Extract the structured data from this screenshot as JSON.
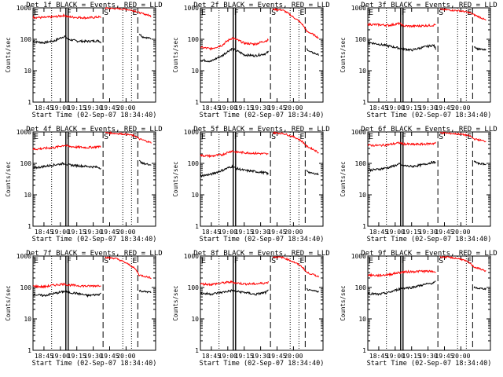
{
  "figure": {
    "colors": {
      "events": "#000000",
      "lld": "#ff0000",
      "background": "#ffffff"
    },
    "time_ticks": [
      "18:45",
      "19:00",
      "19:15",
      "19:30",
      "19:45",
      "20:00"
    ],
    "y_ticks": [
      "1",
      "10",
      "100",
      "1000"
    ]
  },
  "chart_data": [
    {
      "type": "line",
      "title": "Det 1f BLACK = Events, RED = LLD",
      "xlabel": "Start Time (02-Sep-07 18:34:40)",
      "ylabel": "Counts/sec",
      "y_scale": "log",
      "ylim": [
        1,
        1000
      ],
      "x_ticks": [
        "18:45",
        "19:00",
        "19:15",
        "19:30",
        "19:45",
        "20:00"
      ],
      "markers": [
        "E",
        "F",
        "S",
        "E"
      ],
      "marker_minutes": [
        0,
        30,
        64,
        90
      ],
      "data_gaps_minutes": [
        [
          30,
          32
        ],
        [
          62,
          64
        ],
        [
          93,
          97
        ]
      ],
      "series": [
        {
          "name": "Events",
          "color": "#000000",
          "x_minutes": [
            0,
            10,
            20,
            29,
            32,
            40,
            50,
            60,
            62
          ],
          "values": [
            85,
            78,
            90,
            125,
            100,
            88,
            86,
            90,
            80
          ],
          "after_gap": {
            "x_minutes": [
              97,
              100,
              108
            ],
            "values": [
              150,
              120,
              105
            ]
          }
        },
        {
          "name": "LLD",
          "color": "#ff0000",
          "x_minutes": [
            0,
            10,
            20,
            29,
            32,
            40,
            50,
            60,
            62
          ],
          "values": [
            500,
            490,
            520,
            580,
            520,
            500,
            480,
            510,
            500
          ],
          "after_gap": {
            "x_minutes": [
              66,
              75,
              85,
              93,
              97,
              108
            ],
            "values": [
              980,
              950,
              900,
              800,
              700,
              550
            ]
          }
        }
      ]
    },
    {
      "type": "line",
      "title": "Det 2f BLACK = Events, RED = LLD",
      "xlabel": "Start Time (02-Sep-07 18:34:40)",
      "ylabel": "Counts/sec",
      "y_scale": "log",
      "ylim": [
        1,
        1000
      ],
      "x_ticks": [
        "18:45",
        "19:00",
        "19:15",
        "19:30",
        "19:45",
        "20:00"
      ],
      "markers": [
        "E",
        "F",
        "S",
        "E"
      ],
      "marker_minutes": [
        0,
        30,
        64,
        90
      ],
      "data_gaps_minutes": [
        [
          30,
          32
        ],
        [
          62,
          64
        ],
        [
          93,
          97
        ]
      ],
      "series": [
        {
          "name": "Events",
          "color": "#000000",
          "x_minutes": [
            0,
            10,
            20,
            29,
            32,
            40,
            50,
            60,
            62
          ],
          "values": [
            22,
            20,
            30,
            50,
            45,
            32,
            30,
            35,
            40
          ],
          "after_gap": {
            "x_minutes": [
              97,
              100,
              108
            ],
            "values": [
              50,
              40,
              32
            ]
          }
        },
        {
          "name": "LLD",
          "color": "#ff0000",
          "x_minutes": [
            0,
            10,
            20,
            29,
            32,
            40,
            50,
            60,
            62
          ],
          "values": [
            55,
            50,
            65,
            110,
            100,
            75,
            70,
            90,
            95
          ],
          "after_gap": {
            "x_minutes": [
              66,
              75,
              85,
              93,
              97,
              108
            ],
            "values": [
              900,
              850,
              500,
              300,
              180,
              110
            ]
          }
        }
      ]
    },
    {
      "type": "line",
      "title": "Det 3f BLACK = Events, RED = LLD",
      "xlabel": "Start Time (02-Sep-07 18:34:40)",
      "ylabel": "Counts/sec",
      "y_scale": "log",
      "ylim": [
        1,
        1000
      ],
      "x_ticks": [
        "18:45",
        "19:00",
        "19:15",
        "19:30",
        "19:45",
        "20:00"
      ],
      "markers": [
        "E",
        "F",
        "S",
        "E"
      ],
      "marker_minutes": [
        0,
        30,
        64,
        90
      ],
      "data_gaps_minutes": [
        [
          30,
          32
        ],
        [
          62,
          64
        ],
        [
          93,
          97
        ]
      ],
      "series": [
        {
          "name": "Events",
          "color": "#000000",
          "x_minutes": [
            0,
            10,
            20,
            29,
            32,
            40,
            50,
            60,
            62
          ],
          "values": [
            80,
            70,
            60,
            52,
            50,
            45,
            55,
            65,
            50
          ],
          "after_gap": {
            "x_minutes": [
              97,
              100,
              108
            ],
            "values": [
              60,
              50,
              45
            ]
          }
        },
        {
          "name": "LLD",
          "color": "#ff0000",
          "x_minutes": [
            0,
            10,
            20,
            29,
            32,
            40,
            50,
            60,
            62
          ],
          "values": [
            300,
            290,
            280,
            320,
            270,
            260,
            270,
            280,
            300
          ],
          "after_gap": {
            "x_minutes": [
              66,
              75,
              85,
              93,
              97,
              108
            ],
            "values": [
              900,
              850,
              800,
              700,
              600,
              400
            ]
          }
        }
      ]
    },
    {
      "type": "line",
      "title": "Det 4f BLACK = Events, RED = LLD",
      "xlabel": "Start Time (02-Sep-07 18:34:40)",
      "ylabel": "Counts/sec",
      "y_scale": "log",
      "ylim": [
        1,
        1000
      ],
      "x_ticks": [
        "18:45",
        "19:00",
        "19:15",
        "19:30",
        "19:45",
        "20:00"
      ],
      "markers": [
        "E",
        "F",
        "S",
        "E"
      ],
      "marker_minutes": [
        0,
        30,
        64,
        90
      ],
      "data_gaps_minutes": [
        [
          30,
          32
        ],
        [
          62,
          64
        ],
        [
          93,
          97
        ]
      ],
      "series": [
        {
          "name": "Events",
          "color": "#000000",
          "x_minutes": [
            0,
            10,
            20,
            29,
            32,
            40,
            50,
            60,
            62
          ],
          "values": [
            70,
            80,
            90,
            100,
            90,
            85,
            80,
            75,
            70
          ],
          "after_gap": {
            "x_minutes": [
              97,
              100,
              108
            ],
            "values": [
              120,
              100,
              90
            ]
          }
        },
        {
          "name": "LLD",
          "color": "#ff0000",
          "x_minutes": [
            0,
            10,
            20,
            29,
            32,
            40,
            50,
            60,
            62
          ],
          "values": [
            280,
            300,
            320,
            380,
            350,
            330,
            320,
            340,
            360
          ],
          "after_gap": {
            "x_minutes": [
              66,
              75,
              85,
              93,
              97,
              108
            ],
            "values": [
              950,
              900,
              850,
              750,
              600,
              450
            ]
          }
        }
      ]
    },
    {
      "type": "line",
      "title": "Det 5f BLACK = Events, RED = LLD",
      "xlabel": "Start Time (02-Sep-07 18:34:40)",
      "ylabel": "Counts/sec",
      "y_scale": "log",
      "ylim": [
        1,
        1000
      ],
      "x_ticks": [
        "18:45",
        "19:00",
        "19:15",
        "19:30",
        "19:45",
        "20:00"
      ],
      "markers": [
        "E",
        "F",
        "S",
        "E"
      ],
      "marker_minutes": [
        0,
        30,
        64,
        90
      ],
      "data_gaps_minutes": [
        [
          30,
          32
        ],
        [
          62,
          64
        ],
        [
          93,
          97
        ]
      ],
      "series": [
        {
          "name": "Events",
          "color": "#000000",
          "x_minutes": [
            0,
            10,
            20,
            29,
            32,
            40,
            50,
            60,
            62
          ],
          "values": [
            40,
            45,
            60,
            80,
            70,
            60,
            55,
            50,
            45
          ],
          "after_gap": {
            "x_minutes": [
              97,
              100,
              108
            ],
            "values": [
              60,
              50,
              45
            ]
          }
        },
        {
          "name": "LLD",
          "color": "#ff0000",
          "x_minutes": [
            0,
            10,
            20,
            29,
            32,
            40,
            50,
            60,
            62
          ],
          "values": [
            180,
            170,
            190,
            250,
            230,
            220,
            210,
            200,
            190
          ],
          "after_gap": {
            "x_minutes": [
              66,
              75,
              85,
              93,
              97,
              108
            ],
            "values": [
              950,
              900,
              700,
              500,
              350,
              220
            ]
          }
        }
      ]
    },
    {
      "type": "line",
      "title": "Det 6f BLACK = Events, RED = LLD",
      "xlabel": "Start Time (02-Sep-07 18:34:40)",
      "ylabel": "Counts/sec",
      "y_scale": "log",
      "ylim": [
        1,
        1000
      ],
      "x_ticks": [
        "18:45",
        "19:00",
        "19:15",
        "19:30",
        "19:45",
        "20:00"
      ],
      "markers": [
        "E",
        "F",
        "S",
        "E"
      ],
      "marker_minutes": [
        0,
        30,
        64,
        90
      ],
      "data_gaps_minutes": [
        [
          30,
          32
        ],
        [
          62,
          64
        ],
        [
          93,
          97
        ]
      ],
      "series": [
        {
          "name": "Events",
          "color": "#000000",
          "x_minutes": [
            0,
            10,
            20,
            29,
            32,
            40,
            50,
            60,
            62
          ],
          "values": [
            60,
            65,
            75,
            95,
            85,
            80,
            90,
            110,
            100
          ],
          "after_gap": {
            "x_minutes": [
              97,
              100,
              108
            ],
            "values": [
              120,
              100,
              95
            ]
          }
        },
        {
          "name": "LLD",
          "color": "#ff0000",
          "x_minutes": [
            0,
            10,
            20,
            29,
            32,
            40,
            50,
            60,
            62
          ],
          "values": [
            380,
            370,
            400,
            450,
            420,
            400,
            410,
            430,
            450
          ],
          "after_gap": {
            "x_minutes": [
              66,
              75,
              85,
              93,
              97,
              108
            ],
            "values": [
              950,
              900,
              850,
              750,
              600,
              500
            ]
          }
        }
      ]
    },
    {
      "type": "line",
      "title": "Det 7f BLACK = Events, RED = LLD",
      "xlabel": "Start Time (02-Sep-07 18:34:40)",
      "ylabel": "Counts/sec",
      "y_scale": "log",
      "ylim": [
        1,
        1000
      ],
      "x_ticks": [
        "18:45",
        "19:00",
        "19:15",
        "19:30",
        "19:45",
        "20:00"
      ],
      "markers": [
        "E",
        "F",
        "S",
        "E"
      ],
      "marker_minutes": [
        0,
        30,
        64,
        90
      ],
      "data_gaps_minutes": [
        [
          30,
          32
        ],
        [
          62,
          64
        ],
        [
          93,
          97
        ]
      ],
      "series": [
        {
          "name": "Events",
          "color": "#000000",
          "x_minutes": [
            0,
            10,
            20,
            29,
            32,
            40,
            50,
            60,
            62
          ],
          "values": [
            60,
            55,
            65,
            75,
            70,
            65,
            55,
            60,
            65
          ],
          "after_gap": {
            "x_minutes": [
              97,
              100,
              108
            ],
            "values": [
              80,
              75,
              70
            ]
          }
        },
        {
          "name": "LLD",
          "color": "#ff0000",
          "x_minutes": [
            0,
            10,
            20,
            29,
            32,
            40,
            50,
            60,
            62
          ],
          "values": [
            110,
            105,
            120,
            130,
            120,
            115,
            110,
            115,
            120
          ],
          "after_gap": {
            "x_minutes": [
              66,
              75,
              85,
              93,
              97,
              108
            ],
            "values": [
              900,
              850,
              600,
              400,
              250,
              200
            ]
          }
        }
      ]
    },
    {
      "type": "line",
      "title": "Det 8f BLACK = Events, RED = LLD",
      "xlabel": "Start Time (02-Sep-07 18:34:40)",
      "ylabel": "Counts/sec",
      "y_scale": "log",
      "ylim": [
        1,
        1000
      ],
      "x_ticks": [
        "18:45",
        "19:00",
        "19:15",
        "19:30",
        "19:45",
        "20:00"
      ],
      "markers": [
        "E",
        "F",
        "S",
        "E"
      ],
      "marker_minutes": [
        0,
        30,
        64,
        90
      ],
      "data_gaps_minutes": [
        [
          30,
          32
        ],
        [
          62,
          64
        ],
        [
          93,
          97
        ]
      ],
      "series": [
        {
          "name": "Events",
          "color": "#000000",
          "x_minutes": [
            0,
            10,
            20,
            29,
            32,
            40,
            50,
            60,
            62
          ],
          "values": [
            65,
            62,
            70,
            80,
            75,
            70,
            60,
            70,
            80
          ],
          "after_gap": {
            "x_minutes": [
              97,
              100,
              108
            ],
            "values": [
              90,
              80,
              75
            ]
          }
        },
        {
          "name": "LLD",
          "color": "#ff0000",
          "x_minutes": [
            0,
            10,
            20,
            29,
            32,
            40,
            50,
            60,
            62
          ],
          "values": [
            130,
            125,
            140,
            150,
            140,
            130,
            130,
            140,
            150
          ],
          "after_gap": {
            "x_minutes": [
              66,
              75,
              85,
              93,
              97,
              108
            ],
            "values": [
              950,
              900,
              650,
              450,
              300,
              220
            ]
          }
        }
      ]
    },
    {
      "type": "line",
      "title": "Det 9f BLACK = Events, RED = LLD",
      "xlabel": "Start Time (02-Sep-07 18:34:40)",
      "ylabel": "Counts/sec",
      "y_scale": "log",
      "ylim": [
        1,
        1000
      ],
      "x_ticks": [
        "18:45",
        "19:00",
        "19:15",
        "19:30",
        "19:45",
        "20:00"
      ],
      "markers": [
        "E",
        "F",
        "S",
        "E"
      ],
      "marker_minutes": [
        0,
        30,
        64,
        90
      ],
      "data_gaps_minutes": [
        [
          30,
          32
        ],
        [
          62,
          64
        ],
        [
          93,
          97
        ]
      ],
      "series": [
        {
          "name": "Events",
          "color": "#000000",
          "x_minutes": [
            0,
            10,
            20,
            29,
            32,
            40,
            50,
            60,
            62
          ],
          "values": [
            65,
            60,
            70,
            90,
            95,
            100,
            120,
            140,
            150
          ],
          "after_gap": {
            "x_minutes": [
              97,
              100,
              108
            ],
            "values": [
              100,
              95,
              90
            ]
          }
        },
        {
          "name": "LLD",
          "color": "#ff0000",
          "x_minutes": [
            0,
            10,
            20,
            29,
            32,
            40,
            50,
            60,
            62
          ],
          "values": [
            250,
            240,
            260,
            300,
            310,
            320,
            330,
            320,
            310
          ],
          "after_gap": {
            "x_minutes": [
              66,
              75,
              85,
              93,
              97,
              108
            ],
            "values": [
              950,
              900,
              800,
              600,
              450,
              330
            ]
          }
        }
      ]
    }
  ]
}
